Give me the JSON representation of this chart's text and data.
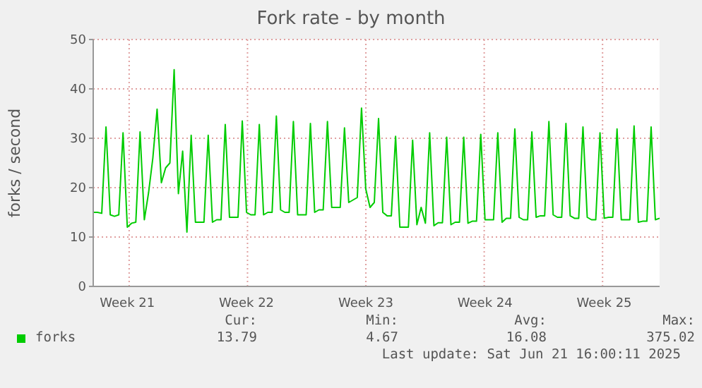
{
  "chart_data": {
    "type": "line",
    "title": "Fork rate - by month",
    "ylabel": "forks / second",
    "categories": [
      null,
      null,
      null,
      null,
      null,
      null,
      null,
      null,
      "Week 21",
      null,
      null,
      null,
      null,
      null,
      null,
      null,
      null,
      null,
      null,
      null,
      null,
      null,
      null,
      null,
      null,
      null,
      null,
      null,
      null,
      null,
      null,
      null,
      null,
      null,
      null,
      null,
      "Week 22",
      null,
      null,
      null,
      null,
      null,
      null,
      null,
      null,
      null,
      null,
      null,
      null,
      null,
      null,
      null,
      null,
      null,
      null,
      null,
      null,
      null,
      null,
      null,
      null,
      null,
      null,
      null,
      "Week 23",
      null,
      null,
      null,
      null,
      null,
      null,
      null,
      null,
      null,
      null,
      null,
      null,
      null,
      null,
      null,
      null,
      null,
      null,
      null,
      null,
      null,
      null,
      null,
      null,
      null,
      null,
      null,
      "Week 24",
      null,
      null,
      null,
      null,
      null,
      null,
      null,
      null,
      null,
      null,
      null,
      null,
      null,
      null,
      null,
      null,
      null,
      null,
      null,
      null,
      null,
      null,
      null,
      null,
      null,
      null,
      null,
      "Week 25",
      null,
      null,
      null,
      null,
      null,
      null,
      null,
      null,
      null,
      null,
      null,
      null,
      null
    ],
    "ylim": [
      0,
      50
    ],
    "yticks": [
      0,
      10,
      20,
      30,
      40,
      50
    ],
    "grid": true,
    "legend": "bottom",
    "marker": "none",
    "line_style": "solid",
    "series": [
      {
        "name": "forks",
        "color": "#00cc00",
        "values": [
          15,
          15,
          14.8,
          32.3,
          14.5,
          14.2,
          14.5,
          31.1,
          12,
          12.8,
          13,
          31.3,
          13.5,
          19,
          26,
          35.9,
          21,
          24,
          25,
          43.9,
          18.8,
          27.4,
          11,
          30.6,
          13,
          13,
          13,
          30.6,
          13,
          13.5,
          13.5,
          32.8,
          14,
          14,
          14,
          33.5,
          15,
          14.5,
          14.5,
          32.8,
          14.5,
          15,
          15,
          34.5,
          15.5,
          15,
          15,
          33.4,
          14.5,
          14.5,
          14.5,
          33,
          15,
          15.5,
          15.5,
          33.4,
          16,
          16,
          16,
          32.1,
          17,
          17.5,
          18,
          36.1,
          19.7,
          16,
          17,
          34,
          15,
          14.3,
          14.3,
          30.4,
          12,
          12,
          12,
          29.6,
          12.5,
          16,
          12.8,
          31.1,
          12.3,
          12.9,
          12.9,
          30.2,
          12.5,
          13,
          13,
          30.2,
          12.8,
          13.2,
          13.2,
          30.8,
          13.5,
          13.5,
          13.5,
          31.1,
          13,
          13.8,
          13.8,
          31.9,
          14,
          13.5,
          13.5,
          31.3,
          14,
          14.3,
          14.3,
          33.4,
          14.5,
          14,
          14,
          33,
          14.3,
          13.8,
          13.8,
          32.3,
          14,
          13.5,
          13.5,
          31.1,
          13.8,
          14,
          14,
          31.9,
          13.5,
          13.5,
          13.5,
          32.5,
          13,
          13.2,
          13.2,
          32.3,
          13.5,
          13.8
        ]
      }
    ],
    "annotations": [
      "Cur:",
      "Min:",
      "Avg:",
      "Max:",
      "13.79",
      "4.67",
      "16.08",
      "375.02",
      "Last update: Sat Jun 21 16:00:11 2025"
    ]
  }
}
